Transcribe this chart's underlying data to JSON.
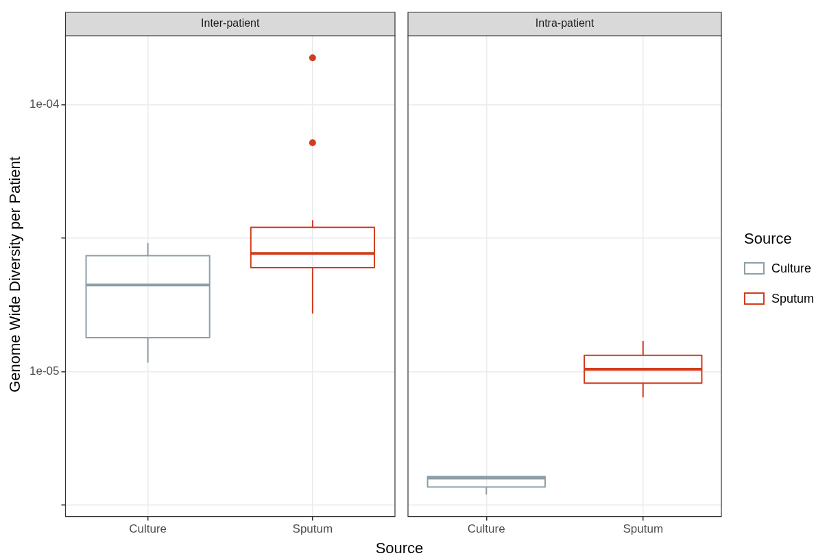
{
  "chart_data": [
    {
      "type": "box",
      "title": "Inter-patient",
      "ylabel": "Genome Wide Diversity per Patient",
      "xlabel": "Source",
      "categories": [
        "Culture",
        "Sputum"
      ],
      "log": "y",
      "ylim": [
        2.86e-06,
        0.0001815
      ],
      "yticks": [
        {
          "value": 3.16e-06,
          "label": null
        },
        {
          "value": 1e-05,
          "label": "1e-05"
        },
        {
          "value": 3.16e-05,
          "label": null
        },
        {
          "value": 0.0001,
          "label": "1e-04"
        }
      ],
      "grid": true,
      "series": [
        {
          "color": "#8c9ea6",
          "boxes": [
            {
              "low": 1.08e-05,
              "q1": 1.34e-05,
              "median": 2.11e-05,
              "q3": 2.72e-05,
              "high": 3.03e-05
            },
            null
          ]
        },
        {
          "color": "#d03c1c",
          "boxes": [
            null,
            {
              "low": 1.65e-05,
              "q1": 2.45e-05,
              "median": 2.77e-05,
              "q3": 3.47e-05,
              "high": 3.69e-05,
              "outliers": [
                7.2e-05,
                0.00015
              ]
            }
          ]
        }
      ]
    },
    {
      "type": "box",
      "title": "Intra-patient",
      "categories": [
        "Culture",
        "Sputum"
      ],
      "log": "y",
      "ylim": [
        2.86e-06,
        0.0001815
      ],
      "yticks": [
        {
          "value": 3.16e-06,
          "label": null
        },
        {
          "value": 1e-05,
          "label": null
        },
        {
          "value": 3.16e-05,
          "label": null
        },
        {
          "value": 0.0001,
          "label": null
        }
      ],
      "grid": true,
      "tick_labels": "x",
      "legend": "right",
      "legend_title": "Source",
      "series": [
        {
          "name": "Culture",
          "color": "#8c9ea6",
          "boxes": [
            {
              "low": 3.46e-06,
              "q1": 3.69e-06,
              "median": 3.99e-06,
              "q3": 4.04e-06,
              "high": 4.04e-06
            },
            null
          ]
        },
        {
          "name": "Sputum",
          "color": "#d03c1c",
          "boxes": [
            null,
            {
              "low": 8e-06,
              "q1": 9.04e-06,
              "median": 1.02e-05,
              "q3": 1.15e-05,
              "high": 1.3e-05
            }
          ]
        }
      ]
    }
  ]
}
